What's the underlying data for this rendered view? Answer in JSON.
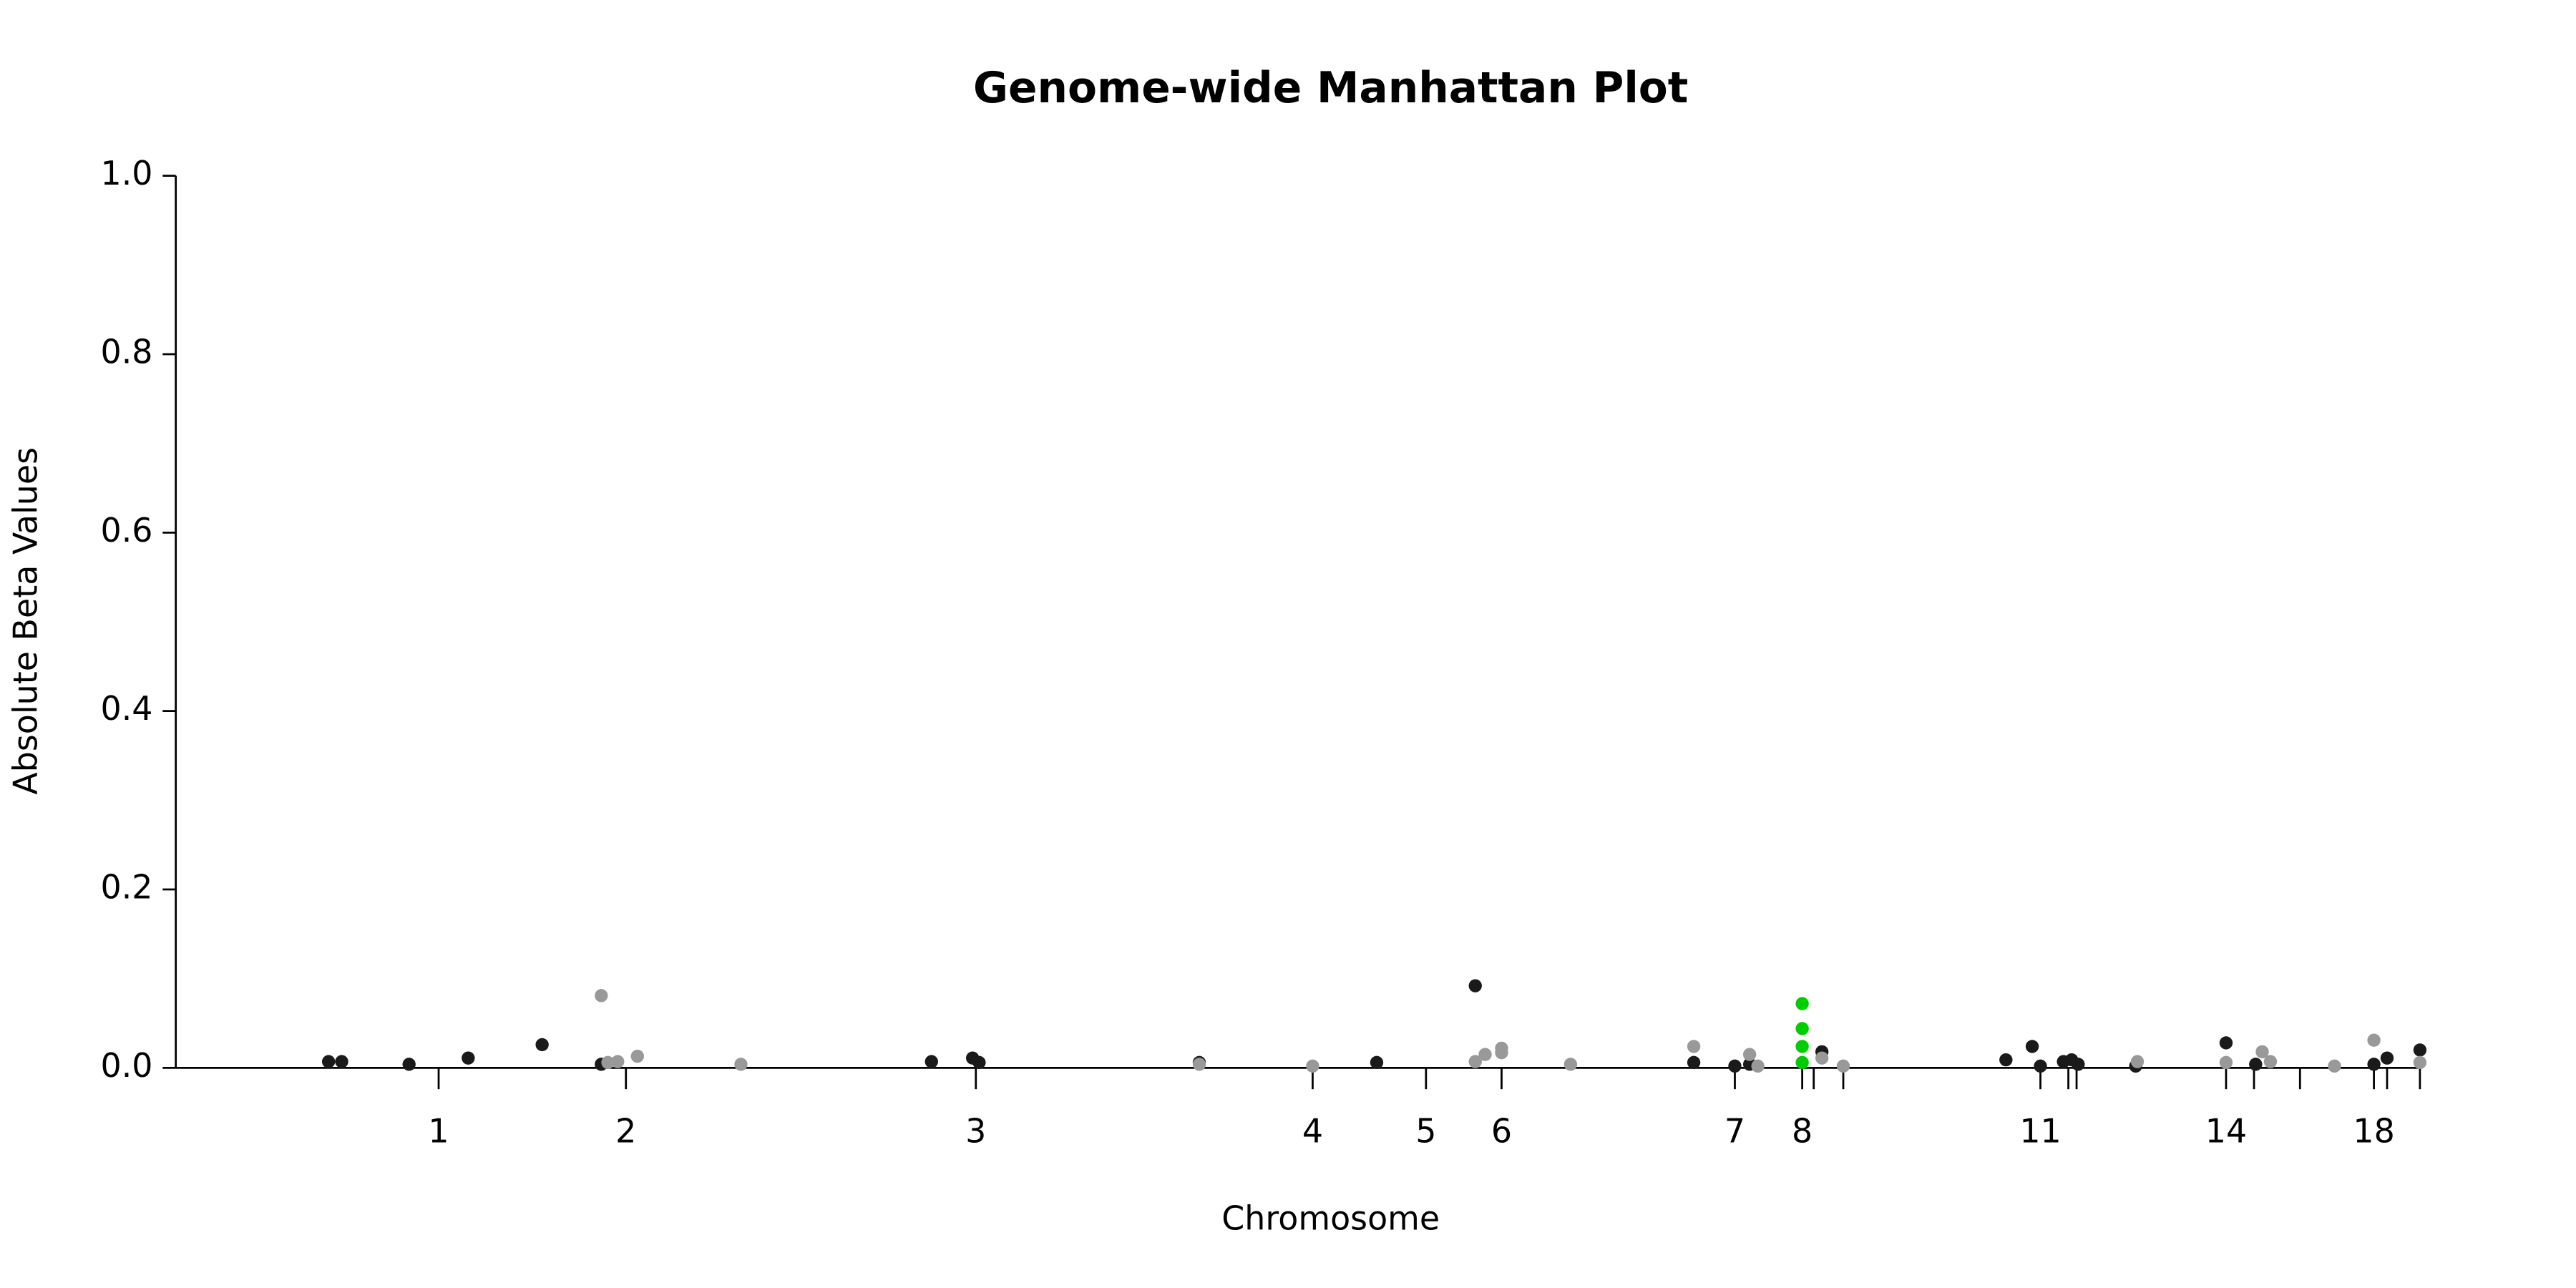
{
  "chart_data": {
    "type": "scatter",
    "title": "Genome-wide Manhattan Plot",
    "xlabel": "Chromosome",
    "ylabel": "Absolute Beta Values",
    "xlim": [
      0,
      1393
    ],
    "ylim": [
      0,
      1
    ],
    "yticks": [
      {
        "value": 0,
        "label": "0.0"
      },
      {
        "value": 0.2,
        "label": "0.2"
      },
      {
        "value": 0.4,
        "label": "0.4"
      },
      {
        "value": 0.6,
        "label": "0.6"
      },
      {
        "value": 0.8,
        "label": "0.8"
      },
      {
        "value": 1,
        "label": "1.0"
      }
    ],
    "xticks": [
      {
        "value": 160,
        "label": "1"
      },
      {
        "value": 274,
        "label": "2"
      },
      {
        "value": 487,
        "label": "3"
      },
      {
        "value": 692,
        "label": "4"
      },
      {
        "value": 761,
        "label": "5"
      },
      {
        "value": 807,
        "label": "6"
      },
      {
        "value": 949,
        "label": "7"
      },
      {
        "value": 990,
        "label": "8"
      },
      {
        "value": 997,
        "label": null
      },
      {
        "value": 1015,
        "label": null
      },
      {
        "value": 1135,
        "label": "11"
      },
      {
        "value": 1152,
        "label": null
      },
      {
        "value": 1157,
        "label": null
      },
      {
        "value": 1248,
        "label": "14"
      },
      {
        "value": 1265,
        "label": null
      },
      {
        "value": 1293,
        "label": null
      },
      {
        "value": 1338,
        "label": "18"
      },
      {
        "value": 1346,
        "label": null
      },
      {
        "value": 1366,
        "label": null
      }
    ],
    "series": [
      {
        "color": "#1a1a1a",
        "x": [
          93,
          101,
          142,
          178,
          223,
          259,
          460,
          485,
          489,
          623,
          731,
          791,
          924,
          949,
          958,
          1002,
          1114,
          1130,
          1135,
          1149,
          1154,
          1158,
          1193,
          1248,
          1266,
          1338,
          1346,
          1366
        ],
        "values": [
          0.007,
          0.007,
          0.004,
          0.011,
          0.026,
          0.004,
          0.007,
          0.011,
          0.006,
          0.006,
          0.006,
          0.092,
          0.006,
          0.002,
          0.004,
          0.018,
          0.009,
          0.024,
          0.002,
          0.007,
          0.009,
          0.004,
          0.002,
          0.028,
          0.004,
          0.004,
          0.011,
          0.02
        ]
      },
      {
        "color": "#999999",
        "x": [
          259,
          263,
          269,
          281,
          344,
          623,
          692,
          791,
          797,
          807,
          807,
          849,
          924,
          958,
          963,
          1002,
          1015,
          1194,
          1248,
          1270,
          1275,
          1314,
          1338,
          1366
        ],
        "values": [
          0.081,
          0.006,
          0.007,
          0.013,
          0.004,
          0.004,
          0.002,
          0.007,
          0.015,
          0.022,
          0.017,
          0.004,
          0.024,
          0.015,
          0.002,
          0.011,
          0.002,
          0.007,
          0.006,
          0.018,
          0.007,
          0.002,
          0.031,
          0.006
        ]
      },
      {
        "color": "#00cc00",
        "x": [
          990,
          990,
          990,
          990
        ],
        "values": [
          0.072,
          0.044,
          0.024,
          0.006
        ]
      }
    ]
  }
}
